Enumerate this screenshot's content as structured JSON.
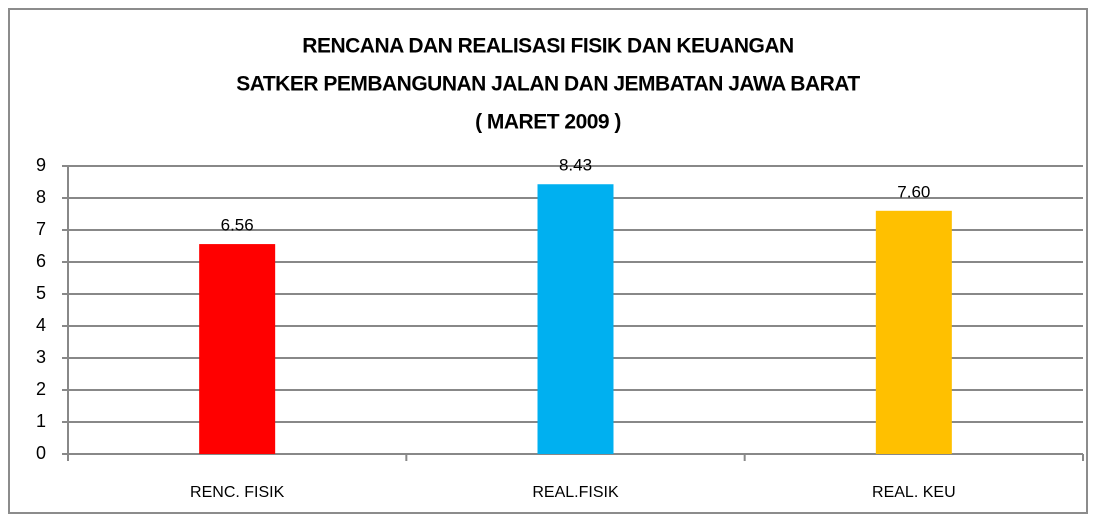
{
  "chart_data": {
    "type": "bar",
    "title": [
      "RENCANA DAN REALISASI FISIK DAN KEUANGAN",
      "SATKER PEMBANGUNAN JALAN DAN JEMBATAN JAWA BARAT",
      "( MARET 2009 )"
    ],
    "categories": [
      "RENC. FISIK",
      "REAL.FISIK",
      "REAL. KEU"
    ],
    "values": [
      6.56,
      8.43,
      7.6
    ],
    "value_labels": [
      "6.56",
      "8.43",
      "7.60"
    ],
    "colors": [
      "#ff0000",
      "#00b0f0",
      "#ffc000"
    ],
    "ylim": [
      0,
      9
    ],
    "yticks": [
      0,
      1,
      2,
      3,
      4,
      5,
      6,
      7,
      8,
      9
    ],
    "grid": true
  }
}
